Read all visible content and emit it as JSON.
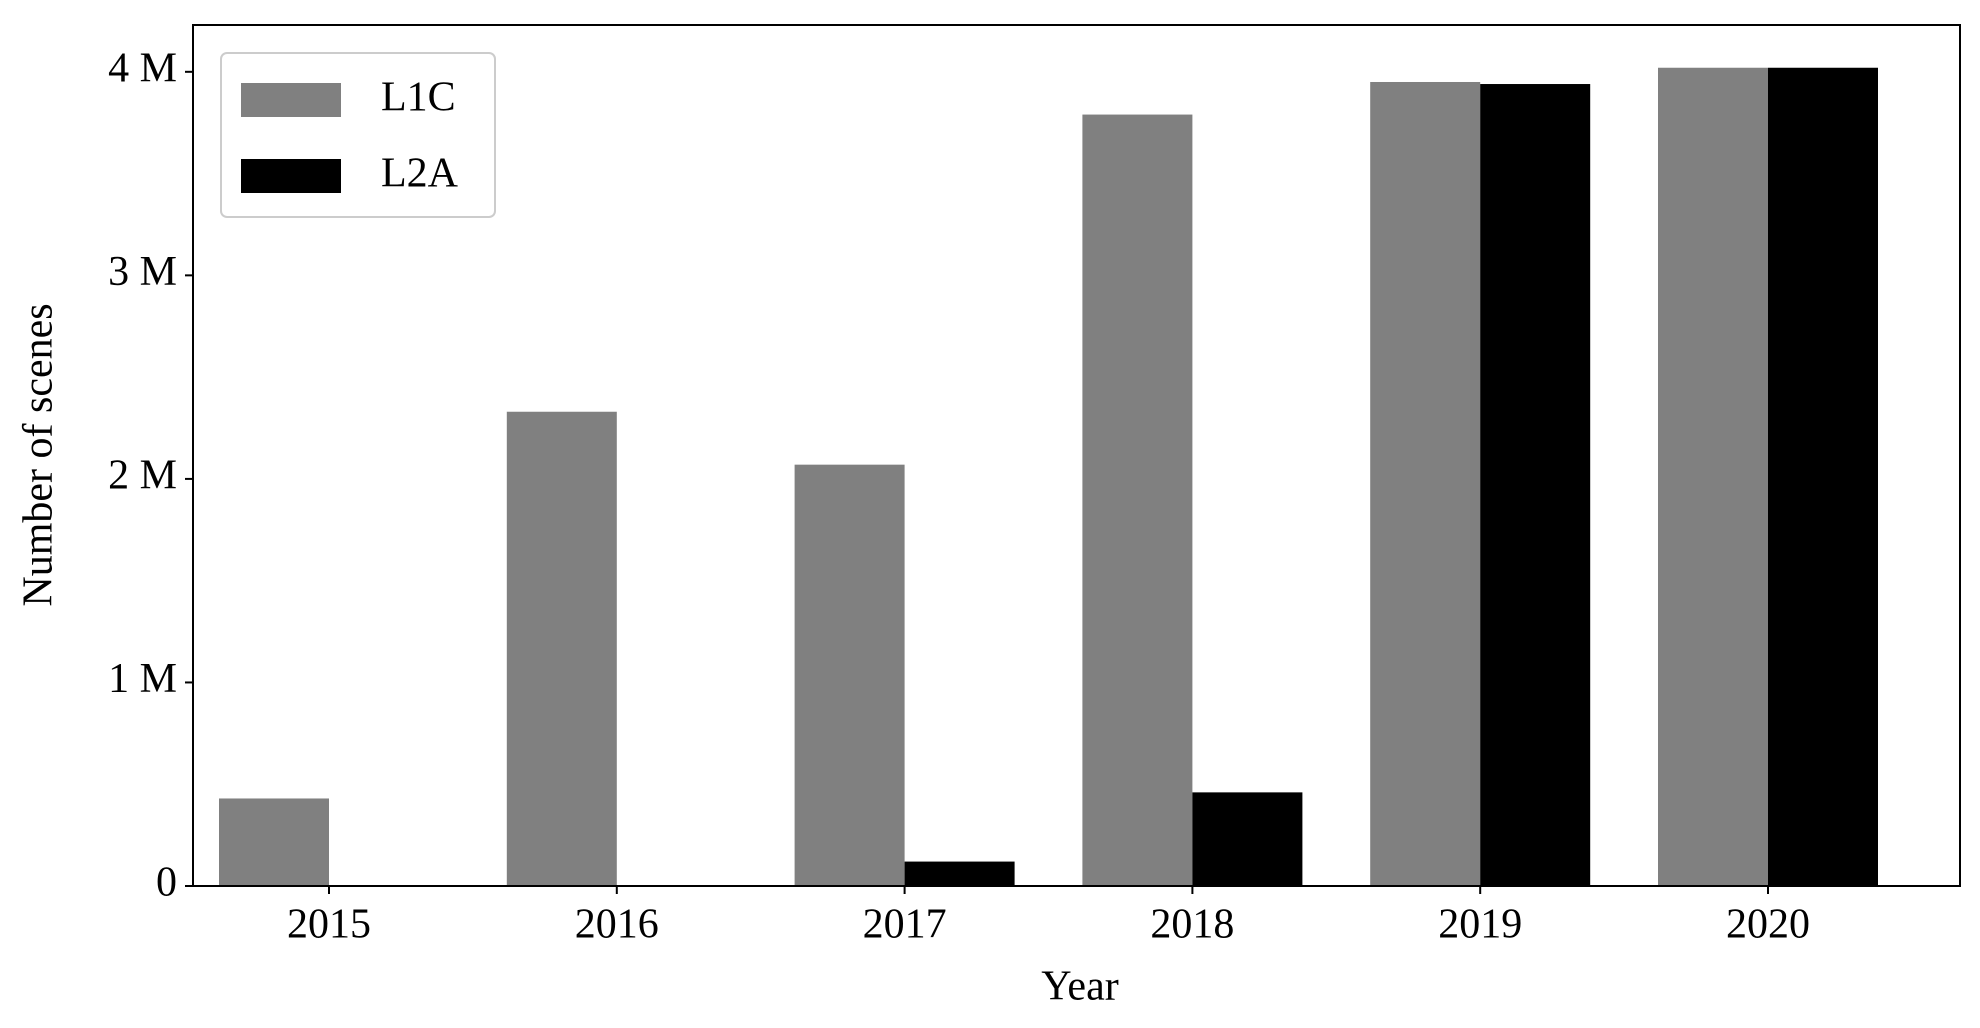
{
  "chart_data": {
    "type": "bar",
    "x_label": "Year",
    "y_label": "Number of scenes",
    "categories": [
      "2015",
      "2016",
      "2017",
      "2018",
      "2019",
      "2020"
    ],
    "series": [
      {
        "name": "L1C",
        "color": "#808080",
        "values": [
          430000,
          2330000,
          2070000,
          3790000,
          3950000,
          4020000
        ]
      },
      {
        "name": "L2A",
        "color": "#000000",
        "values": [
          0,
          0,
          120000,
          460000,
          3940000,
          4020000
        ]
      }
    ],
    "ylim": [
      0,
      4230000
    ],
    "yticks": [
      0,
      {
        "value": 1000000,
        "label": "1 M"
      },
      {
        "value": 2000000,
        "label": "2 M"
      },
      {
        "value": 3000000,
        "label": "3 M"
      },
      {
        "value": 4000000,
        "label": "4 M"
      }
    ],
    "legend": "upper left"
  }
}
